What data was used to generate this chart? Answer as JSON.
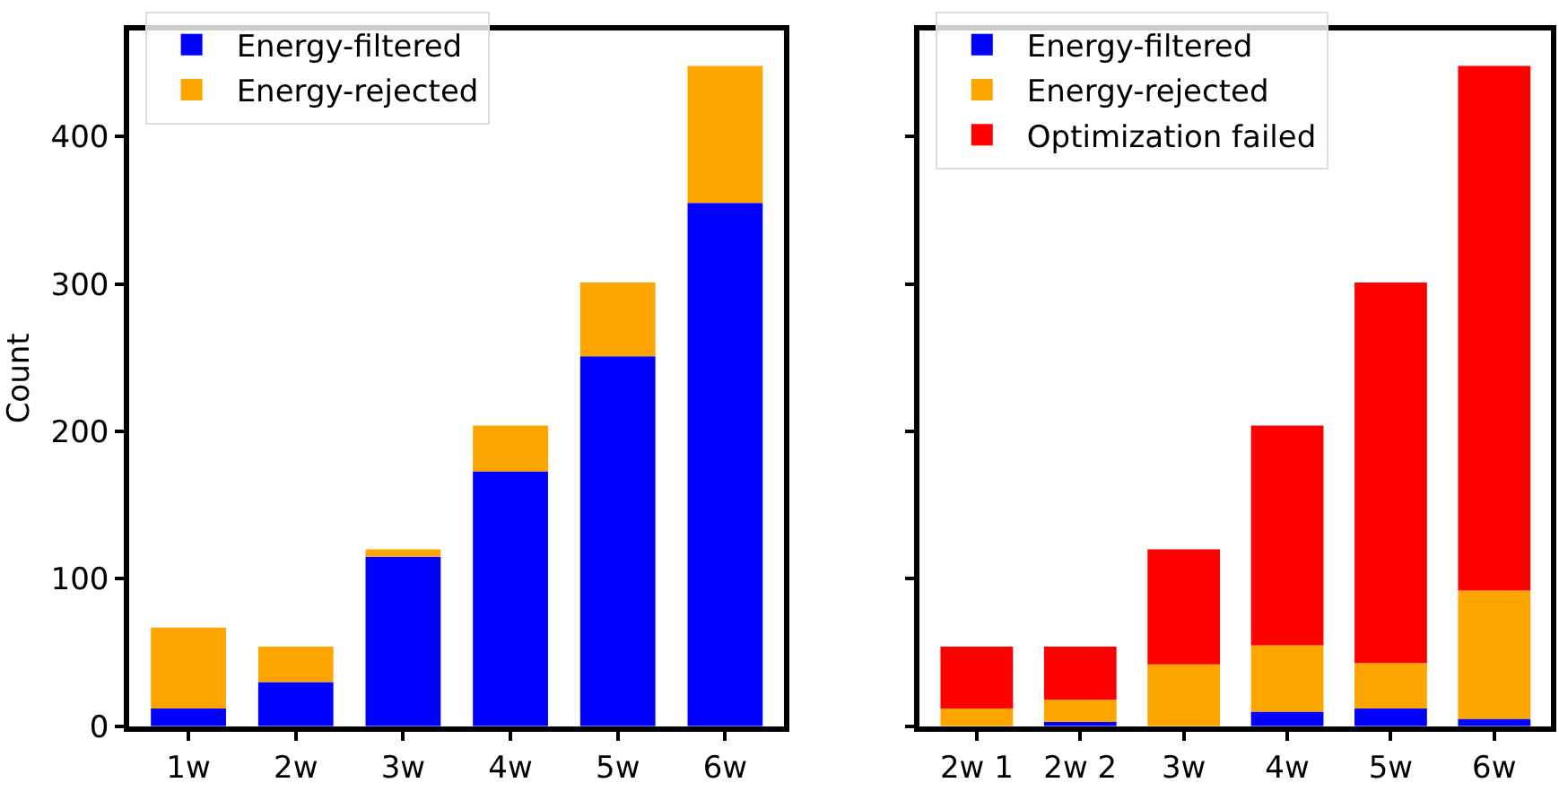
{
  "chart_data": [
    {
      "type": "bar",
      "stacked": true,
      "categories": [
        "1w",
        "2w",
        "3w",
        "4w",
        "5w",
        "6w"
      ],
      "ylabel": "Count",
      "ylim": [
        0,
        472
      ],
      "yticks": [
        0,
        100,
        200,
        300,
        400
      ],
      "legend": "top left",
      "series": [
        {
          "name": "Energy-filtered",
          "color": "#0000ff",
          "values": [
            12,
            30,
            115,
            173,
            251,
            355
          ]
        },
        {
          "name": "Energy-rejected",
          "color": "#ffa500",
          "values": [
            55,
            24,
            5,
            31,
            50,
            93
          ]
        }
      ]
    },
    {
      "type": "bar",
      "stacked": true,
      "categories": [
        "2w 1",
        "2w 2",
        "3w",
        "4w",
        "5w",
        "6w"
      ],
      "ylim": [
        0,
        472
      ],
      "yticks": [
        {
          "value": 0,
          "label": null
        },
        {
          "value": 100,
          "label": null
        },
        {
          "value": 200,
          "label": null
        },
        {
          "value": 300,
          "label": null
        },
        {
          "value": 400,
          "label": null
        }
      ],
      "tick_labels": "x",
      "legend": "top left",
      "series": [
        {
          "name": "Energy-filtered",
          "color": "#0000ff",
          "values": [
            0,
            3,
            0,
            10,
            12,
            5
          ]
        },
        {
          "name": "Energy-rejected",
          "color": "#ffa500",
          "values": [
            12,
            15,
            42,
            45,
            31,
            87
          ]
        },
        {
          "name": "Optimization failed",
          "color": "#ff0000",
          "values": [
            42,
            36,
            78,
            149,
            258,
            356
          ]
        }
      ]
    }
  ]
}
